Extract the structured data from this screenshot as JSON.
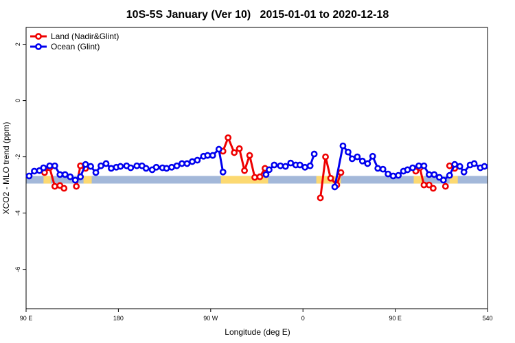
{
  "chart_data": {
    "type": "line",
    "title": "10S-5S January (Ver 10)   2015-01-01 to 2020-12-18",
    "x_label": "Longitude (deg E)",
    "y_label": "XCO2 - MLO trend (ppm)",
    "xlim": [
      90,
      540
    ],
    "xticks": [
      {
        "value": 90,
        "label": "90 E"
      },
      180,
      {
        "value": 270,
        "label": "90 W"
      },
      {
        "value": 360,
        "label": "0"
      },
      {
        "value": 450,
        "label": "90 E"
      },
      540
    ],
    "ylim": [
      -7.4,
      2.6
    ],
    "yticks": [
      2,
      0,
      -2,
      -4,
      -6
    ],
    "legend": "top-left",
    "band": {
      "range": [
        -2.95,
        -2.68
      ],
      "color": "#a3b8d9",
      "highlight_color": "#fcd971",
      "highlight_x": [
        [
          107,
          114
        ],
        [
          146,
          154
        ],
        [
          280,
          326
        ],
        [
          373,
          397
        ],
        [
          468,
          478
        ],
        [
          503,
          511
        ]
      ]
    },
    "series": [
      {
        "name": "Land (Nadir&Glint)",
        "color": "#ee0000",
        "x": [
          108,
          113,
          118,
          123,
          127,
          null,
          139,
          143,
          148,
          null,
          282,
          287,
          293,
          298,
          303,
          308,
          313,
          318,
          323,
          null,
          377,
          382,
          387,
          393,
          397,
          null,
          470,
          474,
          478,
          483,
          487,
          null,
          499,
          null,
          503,
          508
        ],
        "values": [
          -2.56,
          -2.39,
          -3.05,
          -3.02,
          -3.12,
          null,
          -3.05,
          -2.32,
          -2.41,
          null,
          -1.8,
          -1.32,
          -1.85,
          -1.71,
          -2.49,
          -1.95,
          -2.73,
          -2.71,
          -2.41,
          null,
          -3.46,
          -2.0,
          -2.76,
          -3.0,
          -2.56,
          null,
          -2.51,
          -2.39,
          -3.0,
          -3.0,
          -3.12,
          null,
          -3.05,
          null,
          -2.32,
          -2.41
        ]
      },
      {
        "name": "Ocean (Glint)",
        "color": "#0000ee",
        "x": [
          93,
          98,
          103,
          107,
          113,
          118,
          123,
          128,
          133,
          138,
          143,
          148,
          153,
          158,
          163,
          168,
          173,
          178,
          182,
          188,
          192,
          198,
          203,
          207,
          213,
          217,
          223,
          227,
          232,
          237,
          242,
          247,
          252,
          257,
          263,
          267,
          272,
          278,
          282,
          null,
          324,
          327,
          332,
          338,
          343,
          348,
          353,
          357,
          362,
          367,
          371,
          null,
          391,
          399,
          404,
          408,
          413,
          418,
          423,
          428,
          433,
          438,
          443,
          448,
          453,
          458,
          462,
          467,
          473,
          478,
          483,
          488,
          493,
          497,
          503,
          508,
          513,
          517,
          523,
          527,
          533,
          537
        ],
        "values": [
          -2.68,
          -2.51,
          -2.49,
          -2.39,
          -2.32,
          -2.32,
          -2.63,
          -2.63,
          -2.71,
          -2.83,
          -2.71,
          -2.27,
          -2.34,
          -2.56,
          -2.32,
          -2.24,
          -2.41,
          -2.37,
          -2.34,
          -2.32,
          -2.39,
          -2.32,
          -2.32,
          -2.41,
          -2.46,
          -2.37,
          -2.39,
          -2.41,
          -2.37,
          -2.32,
          -2.24,
          -2.24,
          -2.17,
          -2.12,
          -1.98,
          -1.95,
          -1.95,
          -1.73,
          -2.54,
          null,
          -2.63,
          -2.46,
          -2.29,
          -2.32,
          -2.34,
          -2.22,
          -2.29,
          -2.29,
          -2.37,
          -2.32,
          -1.9,
          null,
          -3.07,
          -1.61,
          -1.83,
          -2.07,
          -2.0,
          -2.15,
          -2.24,
          -1.98,
          -2.41,
          -2.44,
          -2.61,
          -2.68,
          -2.66,
          -2.51,
          -2.46,
          -2.39,
          -2.32,
          -2.32,
          -2.63,
          -2.63,
          -2.73,
          -2.83,
          -2.66,
          -2.27,
          -2.34,
          -2.54,
          -2.29,
          -2.24,
          -2.39,
          -2.34
        ]
      }
    ]
  }
}
